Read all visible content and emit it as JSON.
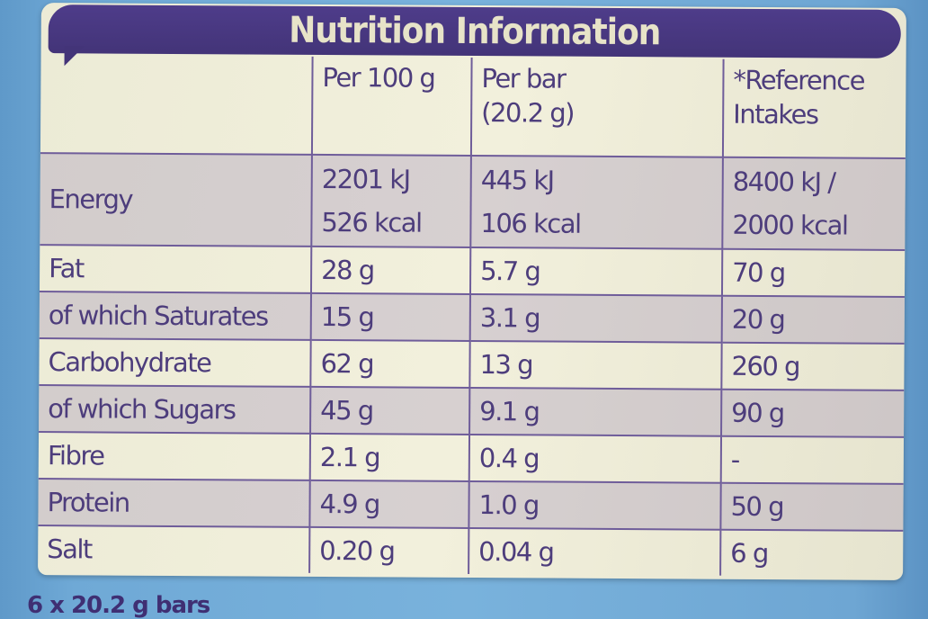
{
  "title": "Nutrition Information",
  "columns": [
    "",
    "Per 100 g",
    "Per bar (20.2 g)",
    "*Reference Intakes"
  ],
  "header": {
    "col_per100_label": "Per 100 g",
    "col_perbar_line1": "Per bar",
    "col_perbar_line2": "(20.2 g)",
    "col_ref_line1": "*Reference",
    "col_ref_line2": "Intakes"
  },
  "energy": {
    "label": "Energy",
    "per100_kj": "2201 kJ",
    "per100_kcal": "526 kcal",
    "perbar_kj": "445 kJ",
    "perbar_kcal": "106 kcal",
    "ref_kj": "8400 kJ /",
    "ref_kcal": "2000 kcal"
  },
  "rows": [
    {
      "label": "Fat",
      "per100": "28 g",
      "perbar": "5.7 g",
      "ref": "70 g"
    },
    {
      "label": "of which Saturates",
      "per100": "15 g",
      "perbar": "3.1 g",
      "ref": "20 g"
    },
    {
      "label": "Carbohydrate",
      "per100": "62 g",
      "perbar": "13 g",
      "ref": "260 g"
    },
    {
      "label": "of which Sugars",
      "per100": "45 g",
      "perbar": "9.1 g",
      "ref": "90 g"
    },
    {
      "label": "Fibre",
      "per100": "2.1 g",
      "perbar": "0.4 g",
      "ref": "-"
    },
    {
      "label": "Protein",
      "per100": "4.9 g",
      "perbar": "1.0 g",
      "ref": "50 g"
    },
    {
      "label": "Salt",
      "per100": "0.20 g",
      "perbar": "0.04 g",
      "ref": "6 g"
    }
  ],
  "footer_text": "6 x 20.2 g bars",
  "colors": {
    "purple": "#4e3c8a",
    "label_cream": "#efedd9",
    "packaging_blue": "#74aed9"
  }
}
